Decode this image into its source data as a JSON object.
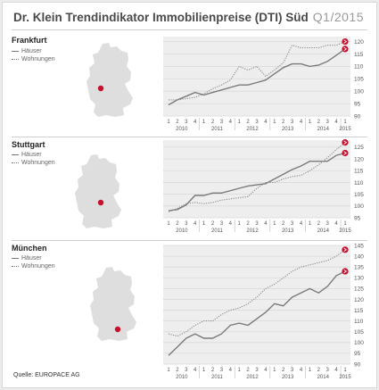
{
  "header": {
    "title": "Dr. Klein Trendindikator Immobilienpreise (DTI) Süd",
    "period": "Q1/2015"
  },
  "legend": {
    "houses_label": "Häuser",
    "flats_label": "Wohnungen"
  },
  "source": "Quelle: EUROPACE AG",
  "colors": {
    "accent": "#c8102e",
    "grid": "#d9d9d9",
    "plot_bg": "#eeeeee",
    "map": "#dedede",
    "houses": "#7a7a7a",
    "flats": "#8a8a8a"
  },
  "chart_data": [
    {
      "type": "line",
      "title": "Frankfurt",
      "x": [
        "2010-Q1",
        "2010-Q2",
        "2010-Q3",
        "2010-Q4",
        "2011-Q1",
        "2011-Q2",
        "2011-Q3",
        "2011-Q4",
        "2012-Q1",
        "2012-Q2",
        "2012-Q3",
        "2012-Q4",
        "2013-Q1",
        "2013-Q2",
        "2013-Q3",
        "2013-Q4",
        "2014-Q1",
        "2014-Q2",
        "2014-Q3",
        "2014-Q4",
        "2015-Q1"
      ],
      "x_tick_labels": [
        "1",
        "2",
        "3",
        "4",
        "1",
        "2",
        "3",
        "4",
        "1",
        "2",
        "3",
        "4",
        "1",
        "2",
        "3",
        "4",
        "1",
        "2",
        "3",
        "4",
        "1"
      ],
      "year_labels": [
        "2010",
        "2011",
        "2012",
        "2013",
        "2014",
        "2015"
      ],
      "ylim": [
        90,
        122
      ],
      "y_ticks": [
        90,
        95,
        100,
        105,
        110,
        115,
        120
      ],
      "series": [
        {
          "name": "Häuser",
          "style": "solid",
          "values": [
            94.5,
            96.5,
            98,
            99.5,
            98.5,
            99.5,
            100.5,
            101.5,
            102.5,
            102.5,
            103.5,
            104.5,
            107,
            109.5,
            111,
            111,
            110,
            110.5,
            112,
            114.5,
            117
          ]
        },
        {
          "name": "Wohnungen",
          "style": "dotted",
          "values": [
            96.5,
            96.5,
            97,
            97.5,
            99,
            101,
            102.5,
            104.5,
            110,
            108.5,
            110,
            106,
            108.5,
            111.5,
            118.5,
            117.5,
            117.5,
            117.5,
            118.5,
            118.5,
            120
          ]
        }
      ]
    },
    {
      "type": "line",
      "title": "Stuttgart",
      "x": [
        "2010-Q1",
        "2010-Q2",
        "2010-Q3",
        "2010-Q4",
        "2011-Q1",
        "2011-Q2",
        "2011-Q3",
        "2011-Q4",
        "2012-Q1",
        "2012-Q2",
        "2012-Q3",
        "2012-Q4",
        "2013-Q1",
        "2013-Q2",
        "2013-Q3",
        "2013-Q4",
        "2014-Q1",
        "2014-Q2",
        "2014-Q3",
        "2014-Q4",
        "2015-Q1"
      ],
      "x_tick_labels": [
        "1",
        "2",
        "3",
        "4",
        "1",
        "2",
        "3",
        "4",
        "1",
        "2",
        "3",
        "4",
        "1",
        "2",
        "3",
        "4",
        "1",
        "2",
        "3",
        "4",
        "1"
      ],
      "year_labels": [
        "2010",
        "2011",
        "2012",
        "2013",
        "2014",
        "2015"
      ],
      "ylim": [
        95,
        128
      ],
      "y_ticks": [
        95,
        100,
        105,
        110,
        115,
        120,
        125
      ],
      "series": [
        {
          "name": "Häuser",
          "style": "solid",
          "values": [
            98,
            98.5,
            100.5,
            104.5,
            104.5,
            105.5,
            105.5,
            106.5,
            107.5,
            108.5,
            109,
            109.5,
            111.5,
            113.5,
            115.5,
            117,
            119,
            119,
            119,
            121.5,
            122.5
          ]
        },
        {
          "name": "Wohnungen",
          "style": "dotted",
          "values": [
            97.5,
            99,
            101,
            101.5,
            101,
            101.5,
            102.5,
            103,
            103.5,
            104,
            107.5,
            110,
            110,
            111.5,
            112.5,
            113,
            115,
            117.5,
            120.5,
            124,
            127
          ]
        }
      ]
    },
    {
      "type": "line",
      "title": "München",
      "x": [
        "2010-Q1",
        "2010-Q2",
        "2010-Q3",
        "2010-Q4",
        "2011-Q1",
        "2011-Q2",
        "2011-Q3",
        "2011-Q4",
        "2012-Q1",
        "2012-Q2",
        "2012-Q3",
        "2012-Q4",
        "2013-Q1",
        "2013-Q2",
        "2013-Q3",
        "2013-Q4",
        "2014-Q1",
        "2014-Q2",
        "2014-Q3",
        "2014-Q4",
        "2015-Q1"
      ],
      "x_tick_labels": [
        "1",
        "2",
        "3",
        "4",
        "1",
        "2",
        "3",
        "4",
        "1",
        "2",
        "3",
        "4",
        "1",
        "2",
        "3",
        "4",
        "1",
        "2",
        "3",
        "4",
        "1"
      ],
      "year_labels": [
        "2010",
        "2011",
        "2012",
        "2013",
        "2014",
        "2015"
      ],
      "ylim": [
        90,
        145
      ],
      "y_ticks": [
        90,
        95,
        100,
        105,
        110,
        115,
        120,
        125,
        130,
        135,
        140,
        145
      ],
      "series": [
        {
          "name": "Häuser",
          "style": "solid",
          "values": [
            94,
            98,
            102,
            104,
            102,
            102,
            104,
            108,
            109,
            108,
            111,
            114,
            118,
            117,
            121,
            123,
            125,
            123,
            126,
            131,
            133
          ]
        },
        {
          "name": "Wohnungen",
          "style": "dotted",
          "values": [
            104,
            103,
            105,
            108,
            110,
            110,
            113,
            115,
            116,
            118,
            121,
            125,
            127,
            130,
            133,
            135,
            136,
            137,
            138,
            140,
            143
          ]
        }
      ]
    }
  ]
}
